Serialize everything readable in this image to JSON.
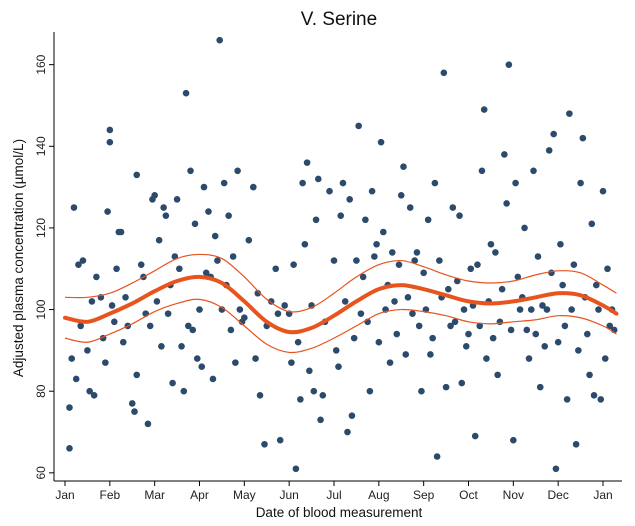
{
  "chart_data": {
    "type": "scatter",
    "title": "V. Serine",
    "xlabel": "Date of blood measurement",
    "ylabel": "Adjusted plasma concentration (µmol/L)",
    "x_unit": "month",
    "xlim": [
      0,
      12.3
    ],
    "ylim": [
      58,
      168
    ],
    "x_ticks": [
      {
        "value": 0,
        "label": "Jan"
      },
      {
        "value": 1,
        "label": "Feb"
      },
      {
        "value": 2,
        "label": "Mar"
      },
      {
        "value": 3,
        "label": "Apr"
      },
      {
        "value": 4,
        "label": "May"
      },
      {
        "value": 5,
        "label": "Jun"
      },
      {
        "value": 6,
        "label": "Jul"
      },
      {
        "value": 7,
        "label": "Aug"
      },
      {
        "value": 8,
        "label": "Sep"
      },
      {
        "value": 9,
        "label": "Oct"
      },
      {
        "value": 10,
        "label": "Nov"
      },
      {
        "value": 11,
        "label": "Dec"
      },
      {
        "value": 12,
        "label": "Jan"
      }
    ],
    "y_ticks": [
      60,
      80,
      100,
      120,
      140,
      160
    ],
    "grid": false,
    "colors": {
      "points": "#2c4a6b",
      "fit": "#e8541e",
      "ci": "#e8541e"
    },
    "series": [
      {
        "kind": "points",
        "points": [
          [
            0.1,
            66
          ],
          [
            0.1,
            76
          ],
          [
            0.15,
            88
          ],
          [
            0.2,
            125
          ],
          [
            0.25,
            83
          ],
          [
            0.3,
            111
          ],
          [
            0.35,
            96
          ],
          [
            0.4,
            112
          ],
          [
            0.5,
            90
          ],
          [
            0.55,
            80
          ],
          [
            0.6,
            102
          ],
          [
            0.65,
            79
          ],
          [
            0.7,
            108
          ],
          [
            0.8,
            103
          ],
          [
            0.85,
            93
          ],
          [
            0.9,
            87
          ],
          [
            0.95,
            124
          ],
          [
            1.0,
            144
          ],
          [
            1.0,
            141
          ],
          [
            1.05,
            101
          ],
          [
            1.1,
            97
          ],
          [
            1.15,
            110
          ],
          [
            1.2,
            119
          ],
          [
            1.25,
            119
          ],
          [
            1.3,
            92
          ],
          [
            1.35,
            103
          ],
          [
            1.4,
            96
          ],
          [
            1.5,
            77
          ],
          [
            1.55,
            75
          ],
          [
            1.6,
            84
          ],
          [
            1.6,
            133
          ],
          [
            1.7,
            111
          ],
          [
            1.75,
            108
          ],
          [
            1.8,
            99
          ],
          [
            1.85,
            72
          ],
          [
            1.9,
            96
          ],
          [
            1.95,
            127
          ],
          [
            2.0,
            128
          ],
          [
            2.05,
            102
          ],
          [
            2.1,
            117
          ],
          [
            2.15,
            91
          ],
          [
            2.2,
            125
          ],
          [
            2.25,
            123
          ],
          [
            2.3,
            99
          ],
          [
            2.35,
            106
          ],
          [
            2.4,
            82
          ],
          [
            2.45,
            113
          ],
          [
            2.5,
            127
          ],
          [
            2.55,
            110
          ],
          [
            2.6,
            91
          ],
          [
            2.65,
            80
          ],
          [
            2.7,
            153
          ],
          [
            2.75,
            96
          ],
          [
            2.8,
            134
          ],
          [
            2.85,
            95
          ],
          [
            2.9,
            121
          ],
          [
            2.95,
            88
          ],
          [
            3.0,
            100
          ],
          [
            3.05,
            86
          ],
          [
            3.1,
            130
          ],
          [
            3.15,
            109
          ],
          [
            3.2,
            124
          ],
          [
            3.25,
            108
          ],
          [
            3.3,
            83
          ],
          [
            3.35,
            118
          ],
          [
            3.4,
            112
          ],
          [
            3.45,
            166
          ],
          [
            3.5,
            100
          ],
          [
            3.55,
            131
          ],
          [
            3.6,
            106
          ],
          [
            3.65,
            123
          ],
          [
            3.7,
            95
          ],
          [
            3.75,
            113
          ],
          [
            3.8,
            87
          ],
          [
            3.85,
            134
          ],
          [
            3.9,
            100
          ],
          [
            3.95,
            97
          ],
          [
            4.0,
            98
          ],
          [
            4.1,
            117
          ],
          [
            4.2,
            130
          ],
          [
            4.25,
            88
          ],
          [
            4.3,
            104
          ],
          [
            4.35,
            79
          ],
          [
            4.45,
            67
          ],
          [
            4.5,
            96
          ],
          [
            4.6,
            102
          ],
          [
            4.7,
            110
          ],
          [
            4.75,
            99
          ],
          [
            4.8,
            68
          ],
          [
            4.9,
            101
          ],
          [
            5.0,
            99
          ],
          [
            5.05,
            87
          ],
          [
            5.1,
            111
          ],
          [
            5.15,
            61
          ],
          [
            5.2,
            92
          ],
          [
            5.25,
            78
          ],
          [
            5.3,
            131
          ],
          [
            5.35,
            116
          ],
          [
            5.4,
            136
          ],
          [
            5.45,
            85
          ],
          [
            5.5,
            101
          ],
          [
            5.55,
            80
          ],
          [
            5.6,
            122
          ],
          [
            5.65,
            132
          ],
          [
            5.7,
            73
          ],
          [
            5.75,
            79
          ],
          [
            5.8,
            97
          ],
          [
            5.9,
            129
          ],
          [
            6.0,
            112
          ],
          [
            6.05,
            90
          ],
          [
            6.1,
            86
          ],
          [
            6.15,
            123
          ],
          [
            6.2,
            131
          ],
          [
            6.25,
            102
          ],
          [
            6.3,
            70
          ],
          [
            6.35,
            127
          ],
          [
            6.4,
            74
          ],
          [
            6.45,
            93
          ],
          [
            6.5,
            112
          ],
          [
            6.55,
            145
          ],
          [
            6.6,
            99
          ],
          [
            6.65,
            108
          ],
          [
            6.7,
            122
          ],
          [
            6.75,
            97
          ],
          [
            6.8,
            80
          ],
          [
            6.85,
            129
          ],
          [
            6.9,
            113
          ],
          [
            6.95,
            116
          ],
          [
            7.0,
            92
          ],
          [
            7.05,
            141
          ],
          [
            7.1,
            119
          ],
          [
            7.15,
            100
          ],
          [
            7.2,
            106
          ],
          [
            7.25,
            87
          ],
          [
            7.3,
            114
          ],
          [
            7.35,
            102
          ],
          [
            7.4,
            94
          ],
          [
            7.45,
            111
          ],
          [
            7.5,
            128
          ],
          [
            7.55,
            135
          ],
          [
            7.6,
            89
          ],
          [
            7.65,
            103
          ],
          [
            7.7,
            125
          ],
          [
            7.75,
            99
          ],
          [
            7.8,
            112
          ],
          [
            7.85,
            114
          ],
          [
            7.9,
            96
          ],
          [
            7.95,
            80
          ],
          [
            8.0,
            109
          ],
          [
            8.05,
            100
          ],
          [
            8.1,
            122
          ],
          [
            8.15,
            89
          ],
          [
            8.2,
            93
          ],
          [
            8.25,
            131
          ],
          [
            8.3,
            64
          ],
          [
            8.35,
            112
          ],
          [
            8.4,
            103
          ],
          [
            8.45,
            158
          ],
          [
            8.5,
            81
          ],
          [
            8.55,
            105
          ],
          [
            8.6,
            96
          ],
          [
            8.65,
            125
          ],
          [
            8.7,
            97
          ],
          [
            8.75,
            107
          ],
          [
            8.8,
            123
          ],
          [
            8.85,
            82
          ],
          [
            8.9,
            100
          ],
          [
            8.95,
            91
          ],
          [
            9.0,
            94
          ],
          [
            9.05,
            110
          ],
          [
            9.1,
            101
          ],
          [
            9.15,
            69
          ],
          [
            9.2,
            111
          ],
          [
            9.25,
            96
          ],
          [
            9.3,
            134
          ],
          [
            9.35,
            149
          ],
          [
            9.4,
            88
          ],
          [
            9.45,
            102
          ],
          [
            9.5,
            116
          ],
          [
            9.55,
            93
          ],
          [
            9.6,
            114
          ],
          [
            9.65,
            84
          ],
          [
            9.7,
            97
          ],
          [
            9.75,
            105
          ],
          [
            9.8,
            138
          ],
          [
            9.85,
            126
          ],
          [
            9.9,
            160
          ],
          [
            9.95,
            95
          ],
          [
            10.0,
            68
          ],
          [
            10.05,
            131
          ],
          [
            10.1,
            108
          ],
          [
            10.15,
            100
          ],
          [
            10.2,
            103
          ],
          [
            10.25,
            120
          ],
          [
            10.3,
            95
          ],
          [
            10.35,
            88
          ],
          [
            10.4,
            100
          ],
          [
            10.45,
            134
          ],
          [
            10.5,
            94
          ],
          [
            10.55,
            113
          ],
          [
            10.6,
            81
          ],
          [
            10.65,
            101
          ],
          [
            10.7,
            91
          ],
          [
            10.75,
            100
          ],
          [
            10.8,
            139
          ],
          [
            10.85,
            109
          ],
          [
            10.9,
            143
          ],
          [
            10.95,
            61
          ],
          [
            11.0,
            92
          ],
          [
            11.05,
            116
          ],
          [
            11.1,
            106
          ],
          [
            11.15,
            96
          ],
          [
            11.2,
            78
          ],
          [
            11.25,
            148
          ],
          [
            11.3,
            100
          ],
          [
            11.35,
            111
          ],
          [
            11.4,
            67
          ],
          [
            11.45,
            90
          ],
          [
            11.5,
            131
          ],
          [
            11.55,
            142
          ],
          [
            11.6,
            103
          ],
          [
            11.65,
            94
          ],
          [
            11.7,
            84
          ],
          [
            11.75,
            121
          ],
          [
            11.8,
            79
          ],
          [
            11.85,
            106
          ],
          [
            11.9,
            100
          ],
          [
            11.95,
            78
          ],
          [
            12.0,
            129
          ],
          [
            12.05,
            88
          ],
          [
            12.1,
            110
          ],
          [
            12.15,
            96
          ],
          [
            12.2,
            100
          ],
          [
            12.25,
            95
          ]
        ]
      },
      {
        "kind": "fit",
        "points": [
          [
            0,
            98
          ],
          [
            0.5,
            97
          ],
          [
            1,
            99
          ],
          [
            1.5,
            101.5
          ],
          [
            2,
            104.5
          ],
          [
            2.5,
            107
          ],
          [
            3,
            108
          ],
          [
            3.5,
            106.5
          ],
          [
            4,
            102
          ],
          [
            4.5,
            97
          ],
          [
            5,
            94.5
          ],
          [
            5.5,
            95.5
          ],
          [
            6,
            98.5
          ],
          [
            6.5,
            102
          ],
          [
            7,
            105
          ],
          [
            7.5,
            106
          ],
          [
            8,
            105
          ],
          [
            8.5,
            103.5
          ],
          [
            9,
            102
          ],
          [
            9.5,
            101.5
          ],
          [
            10,
            102
          ],
          [
            10.5,
            103
          ],
          [
            11,
            104
          ],
          [
            11.5,
            103.5
          ],
          [
            12,
            101
          ],
          [
            12.3,
            99
          ]
        ]
      },
      {
        "kind": "ci_upper",
        "points": [
          [
            0,
            103
          ],
          [
            0.5,
            103
          ],
          [
            1,
            104
          ],
          [
            1.5,
            106.5
          ],
          [
            2,
            109.5
          ],
          [
            2.5,
            112.5
          ],
          [
            3,
            113.5
          ],
          [
            3.5,
            112.5
          ],
          [
            4,
            108
          ],
          [
            4.5,
            102.5
          ],
          [
            5,
            99.5
          ],
          [
            5.5,
            100.5
          ],
          [
            6,
            104
          ],
          [
            6.5,
            108
          ],
          [
            7,
            111
          ],
          [
            7.5,
            112
          ],
          [
            8,
            110.5
          ],
          [
            8.5,
            108.5
          ],
          [
            9,
            107
          ],
          [
            9.5,
            106.5
          ],
          [
            10,
            107
          ],
          [
            10.5,
            108.5
          ],
          [
            11,
            109.5
          ],
          [
            11.5,
            109
          ],
          [
            12,
            106
          ],
          [
            12.3,
            104
          ]
        ]
      },
      {
        "kind": "ci_lower",
        "points": [
          [
            0,
            93
          ],
          [
            0.5,
            92
          ],
          [
            1,
            94
          ],
          [
            1.5,
            96.5
          ],
          [
            2,
            99.5
          ],
          [
            2.5,
            101.5
          ],
          [
            3,
            102.5
          ],
          [
            3.5,
            100.5
          ],
          [
            4,
            96
          ],
          [
            4.5,
            91.5
          ],
          [
            5,
            89.5
          ],
          [
            5.5,
            90.5
          ],
          [
            6,
            93
          ],
          [
            6.5,
            96
          ],
          [
            7,
            99
          ],
          [
            7.5,
            100
          ],
          [
            8,
            99.5
          ],
          [
            8.5,
            98.5
          ],
          [
            9,
            97
          ],
          [
            9.5,
            96.5
          ],
          [
            10,
            97
          ],
          [
            10.5,
            97.5
          ],
          [
            11,
            98.5
          ],
          [
            11.5,
            98
          ],
          [
            12,
            96
          ],
          [
            12.3,
            94
          ]
        ]
      }
    ]
  }
}
